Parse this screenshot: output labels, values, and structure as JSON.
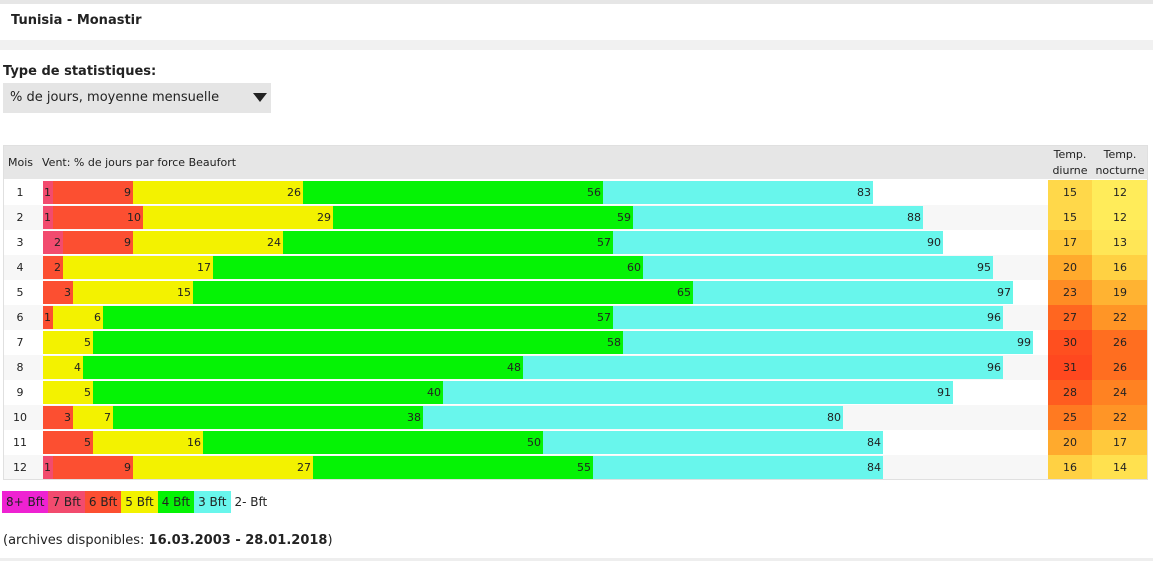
{
  "page": {
    "title": "Tunisia - Monastir",
    "stats_label": "Type de statistiques:",
    "stats_select": {
      "value": "% de jours, moyenne mensuelle",
      "icon": "triangle-down-icon"
    },
    "archives_prefix": "(archives disponibles:",
    "archives_range": "16.03.2003 - 28.01.2018",
    "archives_suffix": ")"
  },
  "table": {
    "col_month": "Mois",
    "col_wind": "Vent: % de jours par force Beaufort",
    "col_temp_day": [
      "Temp.",
      "diurne"
    ],
    "col_temp_night": [
      "Temp.",
      "nocturne"
    ]
  },
  "colors": {
    "bft8": "#ee22d2",
    "bft7": "#f24b6e",
    "bft6": "#fc4f31",
    "bft5": "#f3f200",
    "bft4": "#05f305",
    "bft3": "#68f6ec",
    "temp_scale": {
      "12": "#ffec5a",
      "13": "#ffe656",
      "14": "#ffe14f",
      "15": "#ffd84a",
      "16": "#ffd143",
      "17": "#ffc93c",
      "19": "#ffb332",
      "20": "#ffaa2d",
      "22": "#ff9526",
      "23": "#ff8c24",
      "24": "#ff8222",
      "25": "#ff7a21",
      "26": "#ff6e20",
      "27": "#ff6620",
      "28": "#ff5c1f",
      "30": "#ff4f1f",
      "31": "#ff481f"
    }
  },
  "legend": [
    {
      "label": "8+ Bft",
      "color": "#ee22d2"
    },
    {
      "label": "7 Bft",
      "color": "#f24b6e"
    },
    {
      "label": "6 Bft",
      "color": "#fc4f31"
    },
    {
      "label": "5 Bft",
      "color": "#f3f200"
    },
    {
      "label": "4 Bft",
      "color": "#05f305"
    },
    {
      "label": "3 Bft",
      "color": "#68f6ec"
    },
    {
      "label": "2- Bft",
      "color": ""
    }
  ],
  "chart_data": {
    "type": "bar",
    "subtype": "stacked-cumulative-horizontal",
    "title": "Vent: % de jours par force Beaufort",
    "categories": [
      "1",
      "2",
      "3",
      "4",
      "5",
      "6",
      "7",
      "8",
      "9",
      "10",
      "11",
      "12"
    ],
    "xlim": [
      0,
      100
    ],
    "series": [
      {
        "name": "8+ Bft",
        "values": [
          0,
          0,
          0,
          0,
          0,
          0,
          0,
          0,
          0,
          0,
          0,
          0
        ]
      },
      {
        "name": "7 Bft",
        "values": [
          1,
          1,
          2,
          0,
          0,
          0,
          0,
          0,
          0,
          0,
          0,
          1
        ]
      },
      {
        "name": "6 Bft",
        "values": [
          9,
          10,
          9,
          2,
          3,
          1,
          0,
          0,
          0,
          3,
          5,
          9
        ]
      },
      {
        "name": "5 Bft",
        "values": [
          26,
          29,
          24,
          17,
          15,
          6,
          5,
          4,
          5,
          7,
          16,
          27
        ]
      },
      {
        "name": "4 Bft",
        "values": [
          56,
          59,
          57,
          60,
          65,
          57,
          58,
          48,
          40,
          38,
          50,
          55
        ]
      },
      {
        "name": "3 Bft",
        "values": [
          83,
          88,
          90,
          95,
          97,
          96,
          99,
          96,
          91,
          80,
          84,
          84
        ]
      }
    ],
    "value_labels": [
      [
        "1",
        "9",
        "26",
        "56",
        "83"
      ],
      [
        "1",
        "10",
        "29",
        "59",
        "88"
      ],
      [
        "2",
        "9",
        "24",
        "57",
        "90"
      ],
      [
        "2",
        "17",
        "60",
        "95"
      ],
      [
        "3",
        "15",
        "65",
        "97"
      ],
      [
        "1",
        "6",
        "57",
        "96"
      ],
      [
        "5",
        "58",
        "99"
      ],
      [
        "4",
        "48",
        "96"
      ],
      [
        "5",
        "40",
        "91"
      ],
      [
        "3",
        "7",
        "38",
        "80"
      ],
      [
        "5",
        "16",
        "50",
        "84"
      ],
      [
        "1",
        "9",
        "27",
        "55",
        "84"
      ]
    ],
    "temp_day": [
      15,
      15,
      17,
      20,
      23,
      27,
      30,
      31,
      28,
      25,
      20,
      16
    ],
    "temp_night": [
      12,
      12,
      13,
      16,
      19,
      22,
      26,
      26,
      24,
      22,
      17,
      14
    ]
  }
}
